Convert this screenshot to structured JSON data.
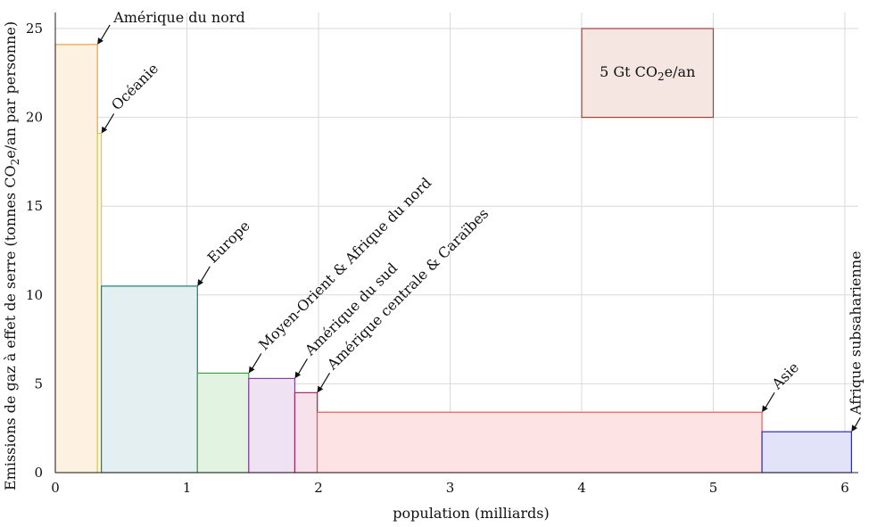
{
  "chart_data": {
    "type": "bar",
    "variant": "variable-width",
    "xlabel": "population (milliards)",
    "ylabel": "Emissions de gaz à effet de serre (tonnes CO2e/an par personne)",
    "ylabel_parts": [
      "Emissions de gaz à effet de serre (tonnes CO",
      "2",
      "e/an par personne)"
    ],
    "xlim": [
      0,
      6.1
    ],
    "ylim": [
      0,
      25.5
    ],
    "xticks": [
      0,
      1,
      2,
      3,
      4,
      5,
      6
    ],
    "yticks": [
      0,
      5,
      10,
      15,
      20,
      25
    ],
    "grid": true,
    "legend": {
      "label": "5 Gt CO2e/an",
      "label_parts": [
        "5 Gt CO",
        "2",
        "e/an"
      ],
      "x0": 4.0,
      "x1": 5.0,
      "y0": 20,
      "y1": 25,
      "fill": "#f5e6e2",
      "stroke": "#a0413a"
    },
    "regions": [
      {
        "name": "Amérique du nord",
        "population": 0.32,
        "emissions": 24.1,
        "fill": "#fdf1e1",
        "stroke": "#e8a13c"
      },
      {
        "name": "Océanie",
        "population": 0.03,
        "emissions": 19.1,
        "fill": "#fbf8dc",
        "stroke": "#d6cf3c"
      },
      {
        "name": "Europe",
        "population": 0.73,
        "emissions": 10.5,
        "fill": "#e3eff0",
        "stroke": "#1e7c74"
      },
      {
        "name": "Moyen-Orient & Afrique du nord",
        "population": 0.39,
        "emissions": 5.6,
        "fill": "#e3f3e2",
        "stroke": "#3f9e3f"
      },
      {
        "name": "Amérique du sud",
        "population": 0.35,
        "emissions": 5.3,
        "fill": "#efe2f3",
        "stroke": "#8c3fa3"
      },
      {
        "name": "Amérique centrale & Caraïbes",
        "population": 0.17,
        "emissions": 4.5,
        "fill": "#f7e2ec",
        "stroke": "#a02a66"
      },
      {
        "name": "Asie",
        "population": 3.38,
        "emissions": 3.4,
        "fill": "#fde3e3",
        "stroke": "#e85a5a"
      },
      {
        "name": "Afrique subsaharienne",
        "population": 0.68,
        "emissions": 2.3,
        "fill": "#e2e2f8",
        "stroke": "#2a2ab0"
      }
    ]
  }
}
